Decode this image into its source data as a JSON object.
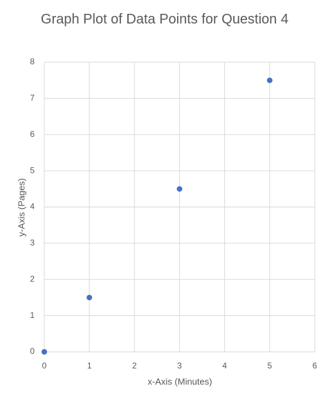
{
  "chart_data": {
    "type": "scatter",
    "title": "Graph Plot of Data Points for Question 4",
    "xlabel": "x-Axis (Minutes)",
    "ylabel": "y-Axis (Pages)",
    "x": [
      0,
      1,
      3,
      5
    ],
    "values": [
      0,
      1.5,
      4.5,
      7.5
    ],
    "color": "#4472c4",
    "xlim": [
      0,
      6
    ],
    "xticks": [
      0,
      1,
      2,
      3,
      4,
      5,
      6
    ],
    "ylim": [
      0,
      8
    ],
    "yticks": [
      0,
      1,
      2,
      3,
      4,
      5,
      6,
      7,
      8
    ],
    "grid": true
  }
}
